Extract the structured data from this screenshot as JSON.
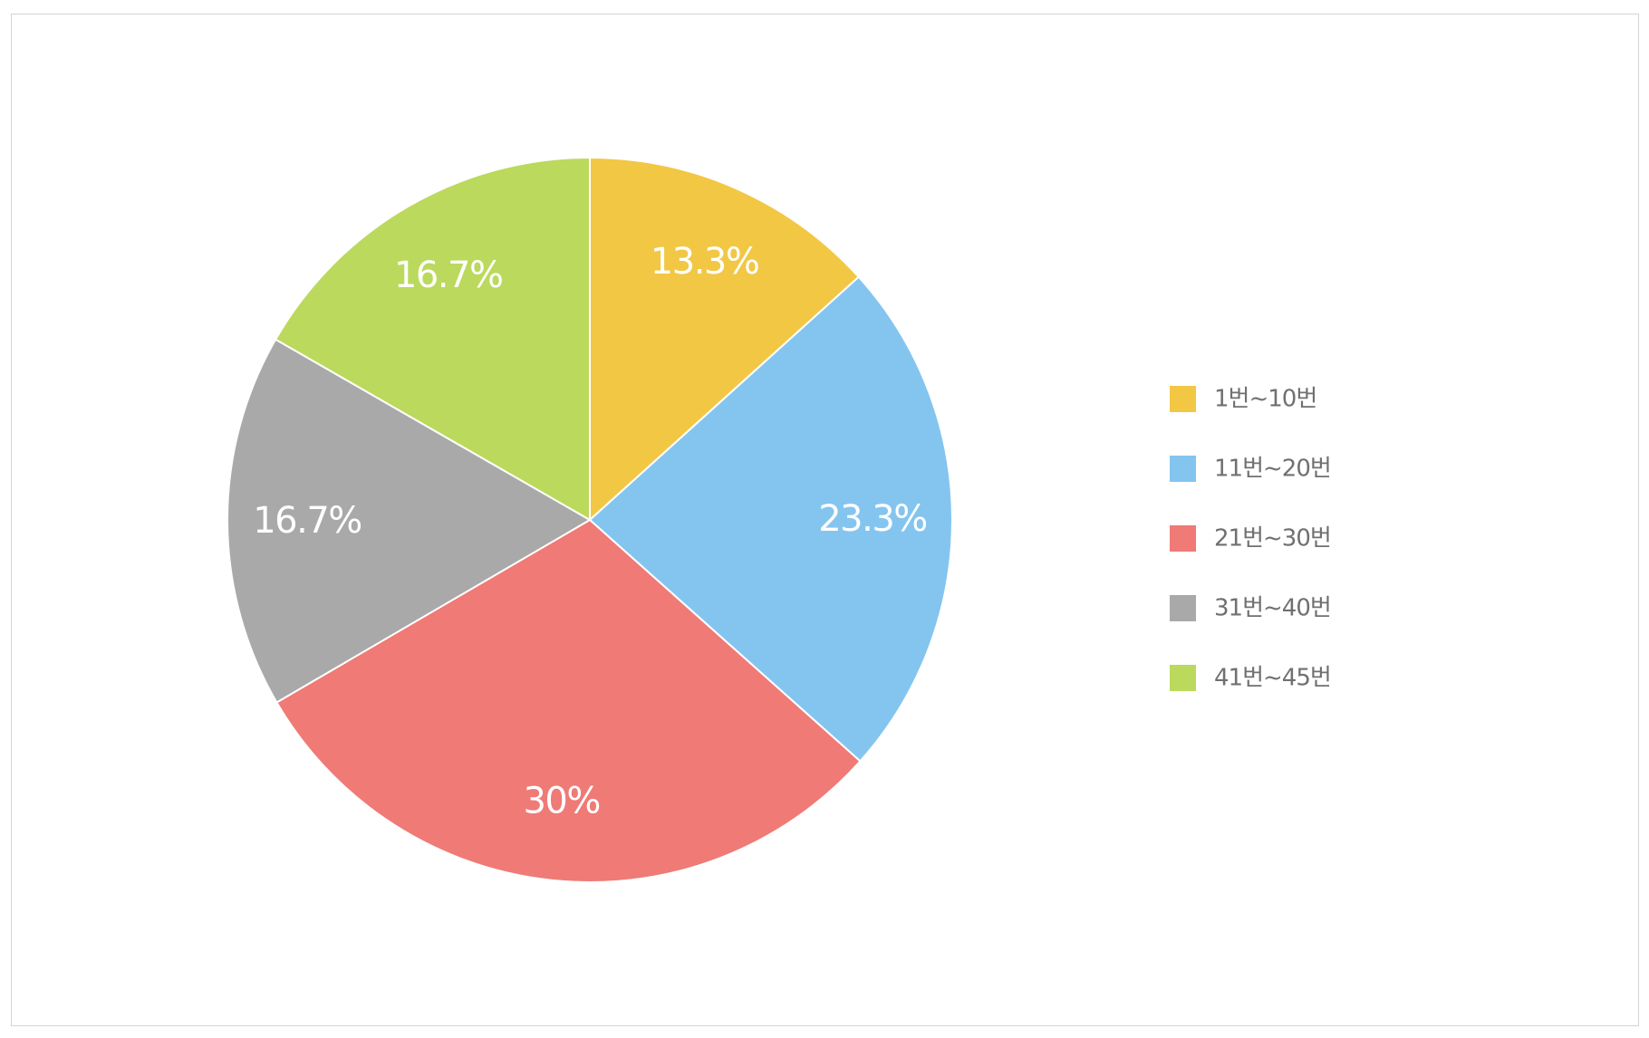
{
  "chart_data": {
    "type": "pie",
    "categories": [
      "1번~10번",
      "11번~20번",
      "21번~30번",
      "31번~40번",
      "41번~45번"
    ],
    "values": [
      13.3,
      23.3,
      30,
      16.7,
      16.7
    ],
    "data_labels": [
      "13.3%",
      "23.3%",
      "30%",
      "16.7%",
      "16.7%"
    ],
    "colors": [
      "#F2C744",
      "#84C5EF",
      "#EF7A76",
      "#A9A9A9",
      "#BBD95C"
    ],
    "start_angle_deg": 0,
    "direction": "clockwise",
    "legend_position": "right",
    "legend": {
      "items": [
        {
          "label": "1번~10번",
          "color": "#F2C744"
        },
        {
          "label": "11번~20번",
          "color": "#84C5EF"
        },
        {
          "label": "21번~30번",
          "color": "#EF7A76"
        },
        {
          "label": "31번~40번",
          "color": "#A9A9A9"
        },
        {
          "label": "41번~45번",
          "color": "#BBD95C"
        }
      ]
    }
  }
}
